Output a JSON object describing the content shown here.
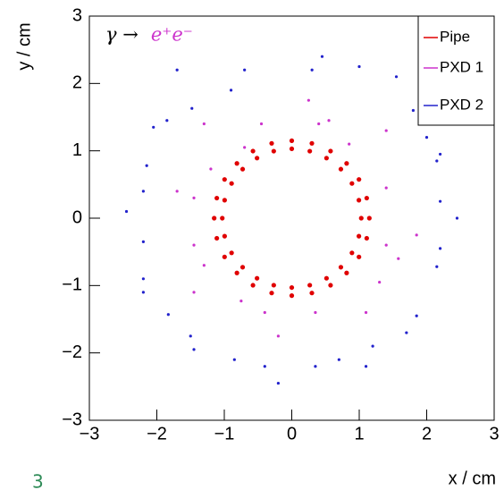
{
  "chart_data": {
    "type": "scatter",
    "annotation": [
      "γ →",
      "e⁺e⁻"
    ],
    "annotation_colors": [
      "#000000",
      "#cc33cc"
    ],
    "xlabel": "x / cm",
    "ylabel": "y / cm",
    "page_label": "3",
    "xlim": [
      -3,
      3
    ],
    "ylim": [
      -3,
      3
    ],
    "xticks": [
      {
        "value": -3,
        "label": "−3"
      },
      {
        "value": -2,
        "label": "−2"
      },
      {
        "value": -1,
        "label": "−1"
      },
      0,
      1,
      2,
      3
    ],
    "yticks": [
      {
        "value": -3,
        "label": "−3"
      },
      {
        "value": -2,
        "label": "−2"
      },
      {
        "value": -1,
        "label": "−1"
      },
      0,
      1,
      2,
      3
    ],
    "legend": "top-right",
    "series": [
      {
        "name": "Pipe",
        "color": "#e00000",
        "x": [
          1.03,
          0.995,
          0.892,
          0.728,
          0.515,
          0.267,
          0,
          -0.267,
          -0.515,
          -0.728,
          -0.892,
          -0.995,
          -1.03,
          -0.995,
          -0.892,
          -0.728,
          -0.515,
          -0.267,
          0,
          0.267,
          0.515,
          0.728,
          0.892,
          0.995,
          1.15,
          1.111,
          0.996,
          0.813,
          0.575,
          0.298,
          0,
          -0.298,
          -0.575,
          -0.813,
          -0.996,
          -1.111,
          -1.15,
          -1.111,
          -0.996,
          -0.813,
          -0.575,
          -0.298,
          0,
          0.298,
          0.575,
          0.813,
          0.996,
          1.111
        ],
        "y": [
          0,
          0.267,
          0.515,
          0.728,
          0.892,
          0.995,
          1.03,
          0.995,
          0.892,
          0.728,
          0.515,
          0.267,
          0,
          -0.267,
          -0.515,
          -0.728,
          -0.892,
          -0.995,
          -1.03,
          -0.995,
          -0.892,
          -0.728,
          -0.515,
          -0.267,
          0,
          0.298,
          0.575,
          0.813,
          0.996,
          1.111,
          1.15,
          1.111,
          0.996,
          0.813,
          0.575,
          0.298,
          0,
          -0.298,
          -0.575,
          -0.813,
          -0.996,
          -1.111,
          -1.15,
          -1.111,
          -0.996,
          -0.813,
          -0.575,
          -0.298
        ]
      },
      {
        "name": "PXD 1",
        "color": "#cc33cc",
        "x": [
          -1.3,
          -0.45,
          0.4,
          0.25,
          0.55,
          0.85,
          1.4,
          1.4,
          1.4,
          1.85,
          1.58,
          1.3,
          1.1,
          0.35,
          -0.4,
          -0.2,
          -0.75,
          -1.3,
          -1.45,
          -1.45,
          -1.45,
          -1.7,
          -1.2,
          -0.7
        ],
        "y": [
          1.4,
          1.4,
          1.4,
          1.75,
          1.45,
          1.1,
          1.3,
          0.45,
          -0.4,
          -0.25,
          -0.6,
          -0.95,
          -1.4,
          -1.4,
          -1.4,
          -1.75,
          -1.23,
          -0.7,
          -1.1,
          -0.4,
          0.3,
          0.4,
          0.73,
          1.05
        ]
      },
      {
        "name": "PXD 2",
        "color": "#2222cc",
        "x": [
          -1.7,
          -0.7,
          0.3,
          0.45,
          1.0,
          1.55,
          1.8,
          2.0,
          2.15,
          2.2,
          2.2,
          2.2,
          2.45,
          2.15,
          1.85,
          1.7,
          1.2,
          0.7,
          1.1,
          0.35,
          -0.4,
          -0.2,
          -0.85,
          -1.5,
          -1.45,
          -1.83,
          -2.2,
          -2.2,
          -2.2,
          -2.2,
          -2.45,
          -2.15,
          -1.85,
          -2.05,
          -1.48,
          -0.9
        ],
        "y": [
          2.2,
          2.2,
          2.2,
          2.4,
          2.25,
          2.1,
          1.6,
          1.2,
          0.85,
          0.95,
          0.25,
          -0.45,
          0,
          -0.72,
          -1.45,
          -1.7,
          -1.9,
          -2.1,
          -2.2,
          -2.2,
          -2.2,
          -2.45,
          -2.1,
          -1.75,
          -1.95,
          -1.43,
          -0.9,
          -1.1,
          -0.35,
          0.4,
          0.1,
          0.78,
          1.45,
          1.35,
          1.63,
          1.9
        ]
      }
    ]
  }
}
